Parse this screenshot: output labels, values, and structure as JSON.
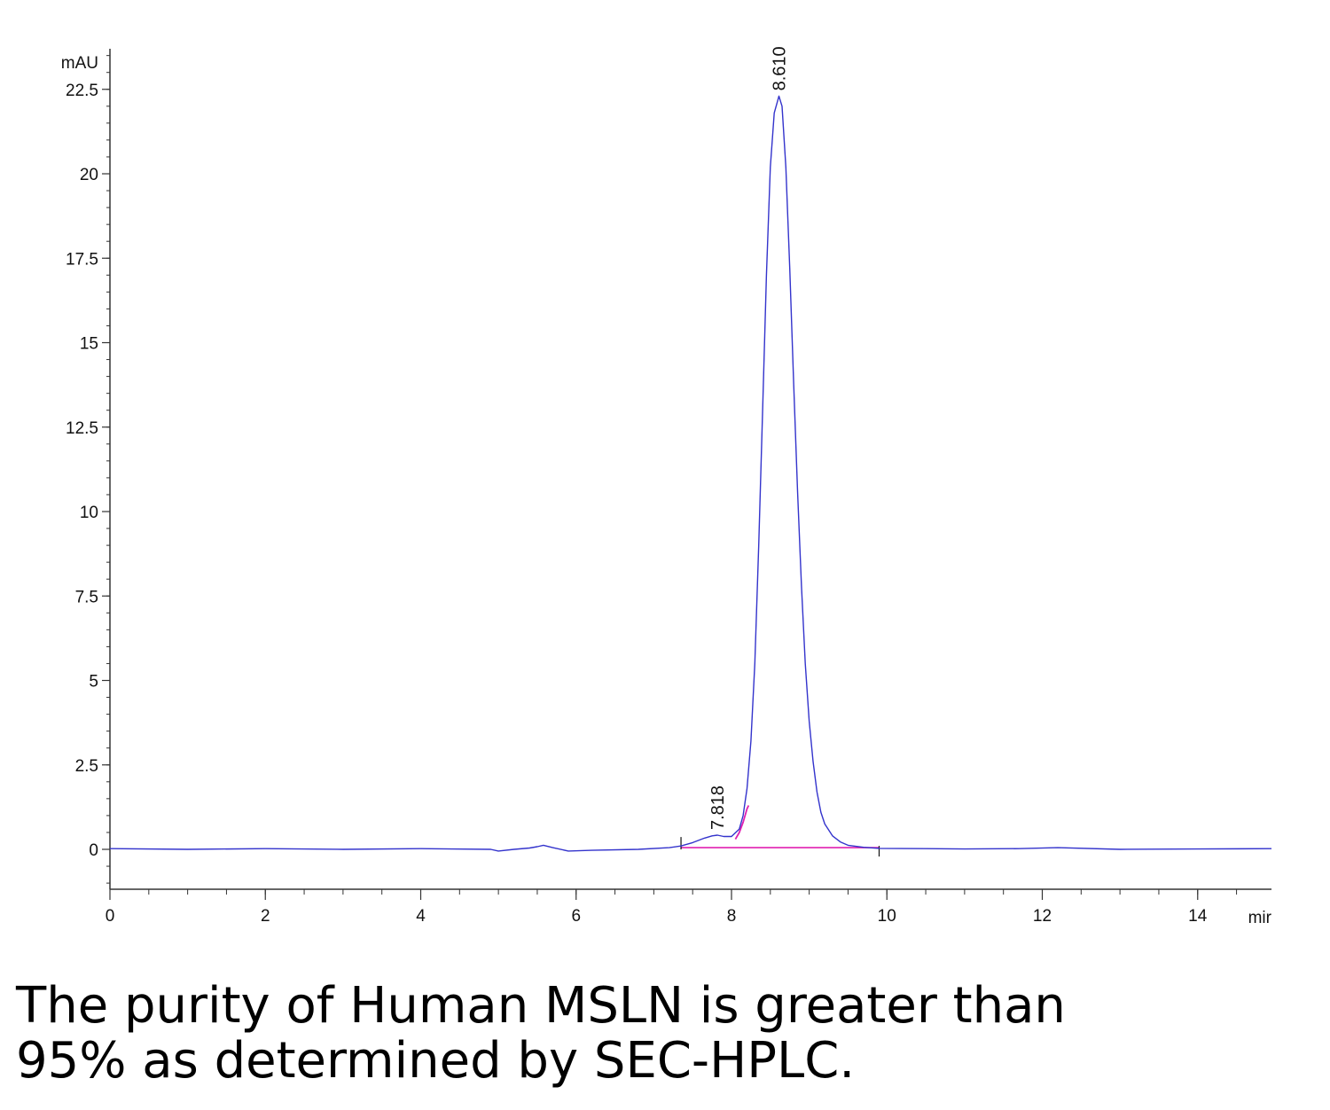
{
  "chart_data": {
    "type": "line",
    "title": "",
    "ylabel": "mAU",
    "xlabel": "mir",
    "xlim": [
      0,
      14.95
    ],
    "ylim": [
      -1.2,
      24
    ],
    "x_ticks": [
      "0",
      "2",
      "4",
      "6",
      "8",
      "10",
      "12",
      "14"
    ],
    "y_ticks": [
      "0",
      "2.5",
      "5",
      "7.5",
      "10",
      "12.5",
      "15",
      "17.5",
      "20",
      "22.5"
    ],
    "series": [
      {
        "name": "",
        "color": "#3333cc",
        "x": [
          0,
          1,
          2,
          3,
          4,
          4.9,
          5.0,
          5.2,
          5.4,
          5.5,
          5.58,
          5.7,
          5.9,
          6.2,
          6.8,
          7.2,
          7.35,
          7.5,
          7.65,
          7.75,
          7.818,
          7.9,
          8.0,
          8.1,
          8.15,
          8.2,
          8.25,
          8.3,
          8.35,
          8.4,
          8.45,
          8.5,
          8.55,
          8.61,
          8.65,
          8.7,
          8.75,
          8.8,
          8.85,
          8.9,
          8.95,
          9.0,
          9.05,
          9.1,
          9.15,
          9.2,
          9.3,
          9.4,
          9.5,
          9.7,
          9.9,
          10.5,
          11,
          11.7,
          12.2,
          13,
          14,
          14.95
        ],
        "y": [
          0.02,
          0.0,
          0.02,
          0.0,
          0.02,
          0.0,
          -0.05,
          0.0,
          0.04,
          0.08,
          0.12,
          0.05,
          -0.05,
          -0.03,
          0.0,
          0.05,
          0.1,
          0.2,
          0.33,
          0.4,
          0.42,
          0.38,
          0.38,
          0.6,
          1.0,
          1.8,
          3.2,
          5.5,
          9.0,
          13.0,
          17.0,
          20.2,
          21.8,
          22.3,
          22.0,
          20.2,
          17.2,
          13.8,
          10.6,
          7.8,
          5.5,
          3.8,
          2.6,
          1.7,
          1.1,
          0.75,
          0.4,
          0.22,
          0.12,
          0.06,
          0.03,
          0.02,
          0.01,
          0.02,
          0.05,
          0.0,
          0.01,
          0.02
        ]
      }
    ],
    "integration": {
      "color": "#e020b0",
      "baseline_x": [
        7.35,
        9.9
      ],
      "baseline_y": [
        0.05,
        0.05
      ],
      "peak_fill_x": [
        8.05,
        8.1,
        8.15,
        8.2,
        8.22
      ],
      "peak_fill_y": [
        0.3,
        0.5,
        0.8,
        1.2,
        1.3
      ]
    },
    "peaks": [
      {
        "rt": 7.818,
        "label": "7.818"
      },
      {
        "rt": 8.61,
        "label": "8.610"
      }
    ]
  },
  "caption": {
    "line1": "The purity of Human MSLN is greater than",
    "line2": "95% as determined by SEC-HPLC."
  }
}
